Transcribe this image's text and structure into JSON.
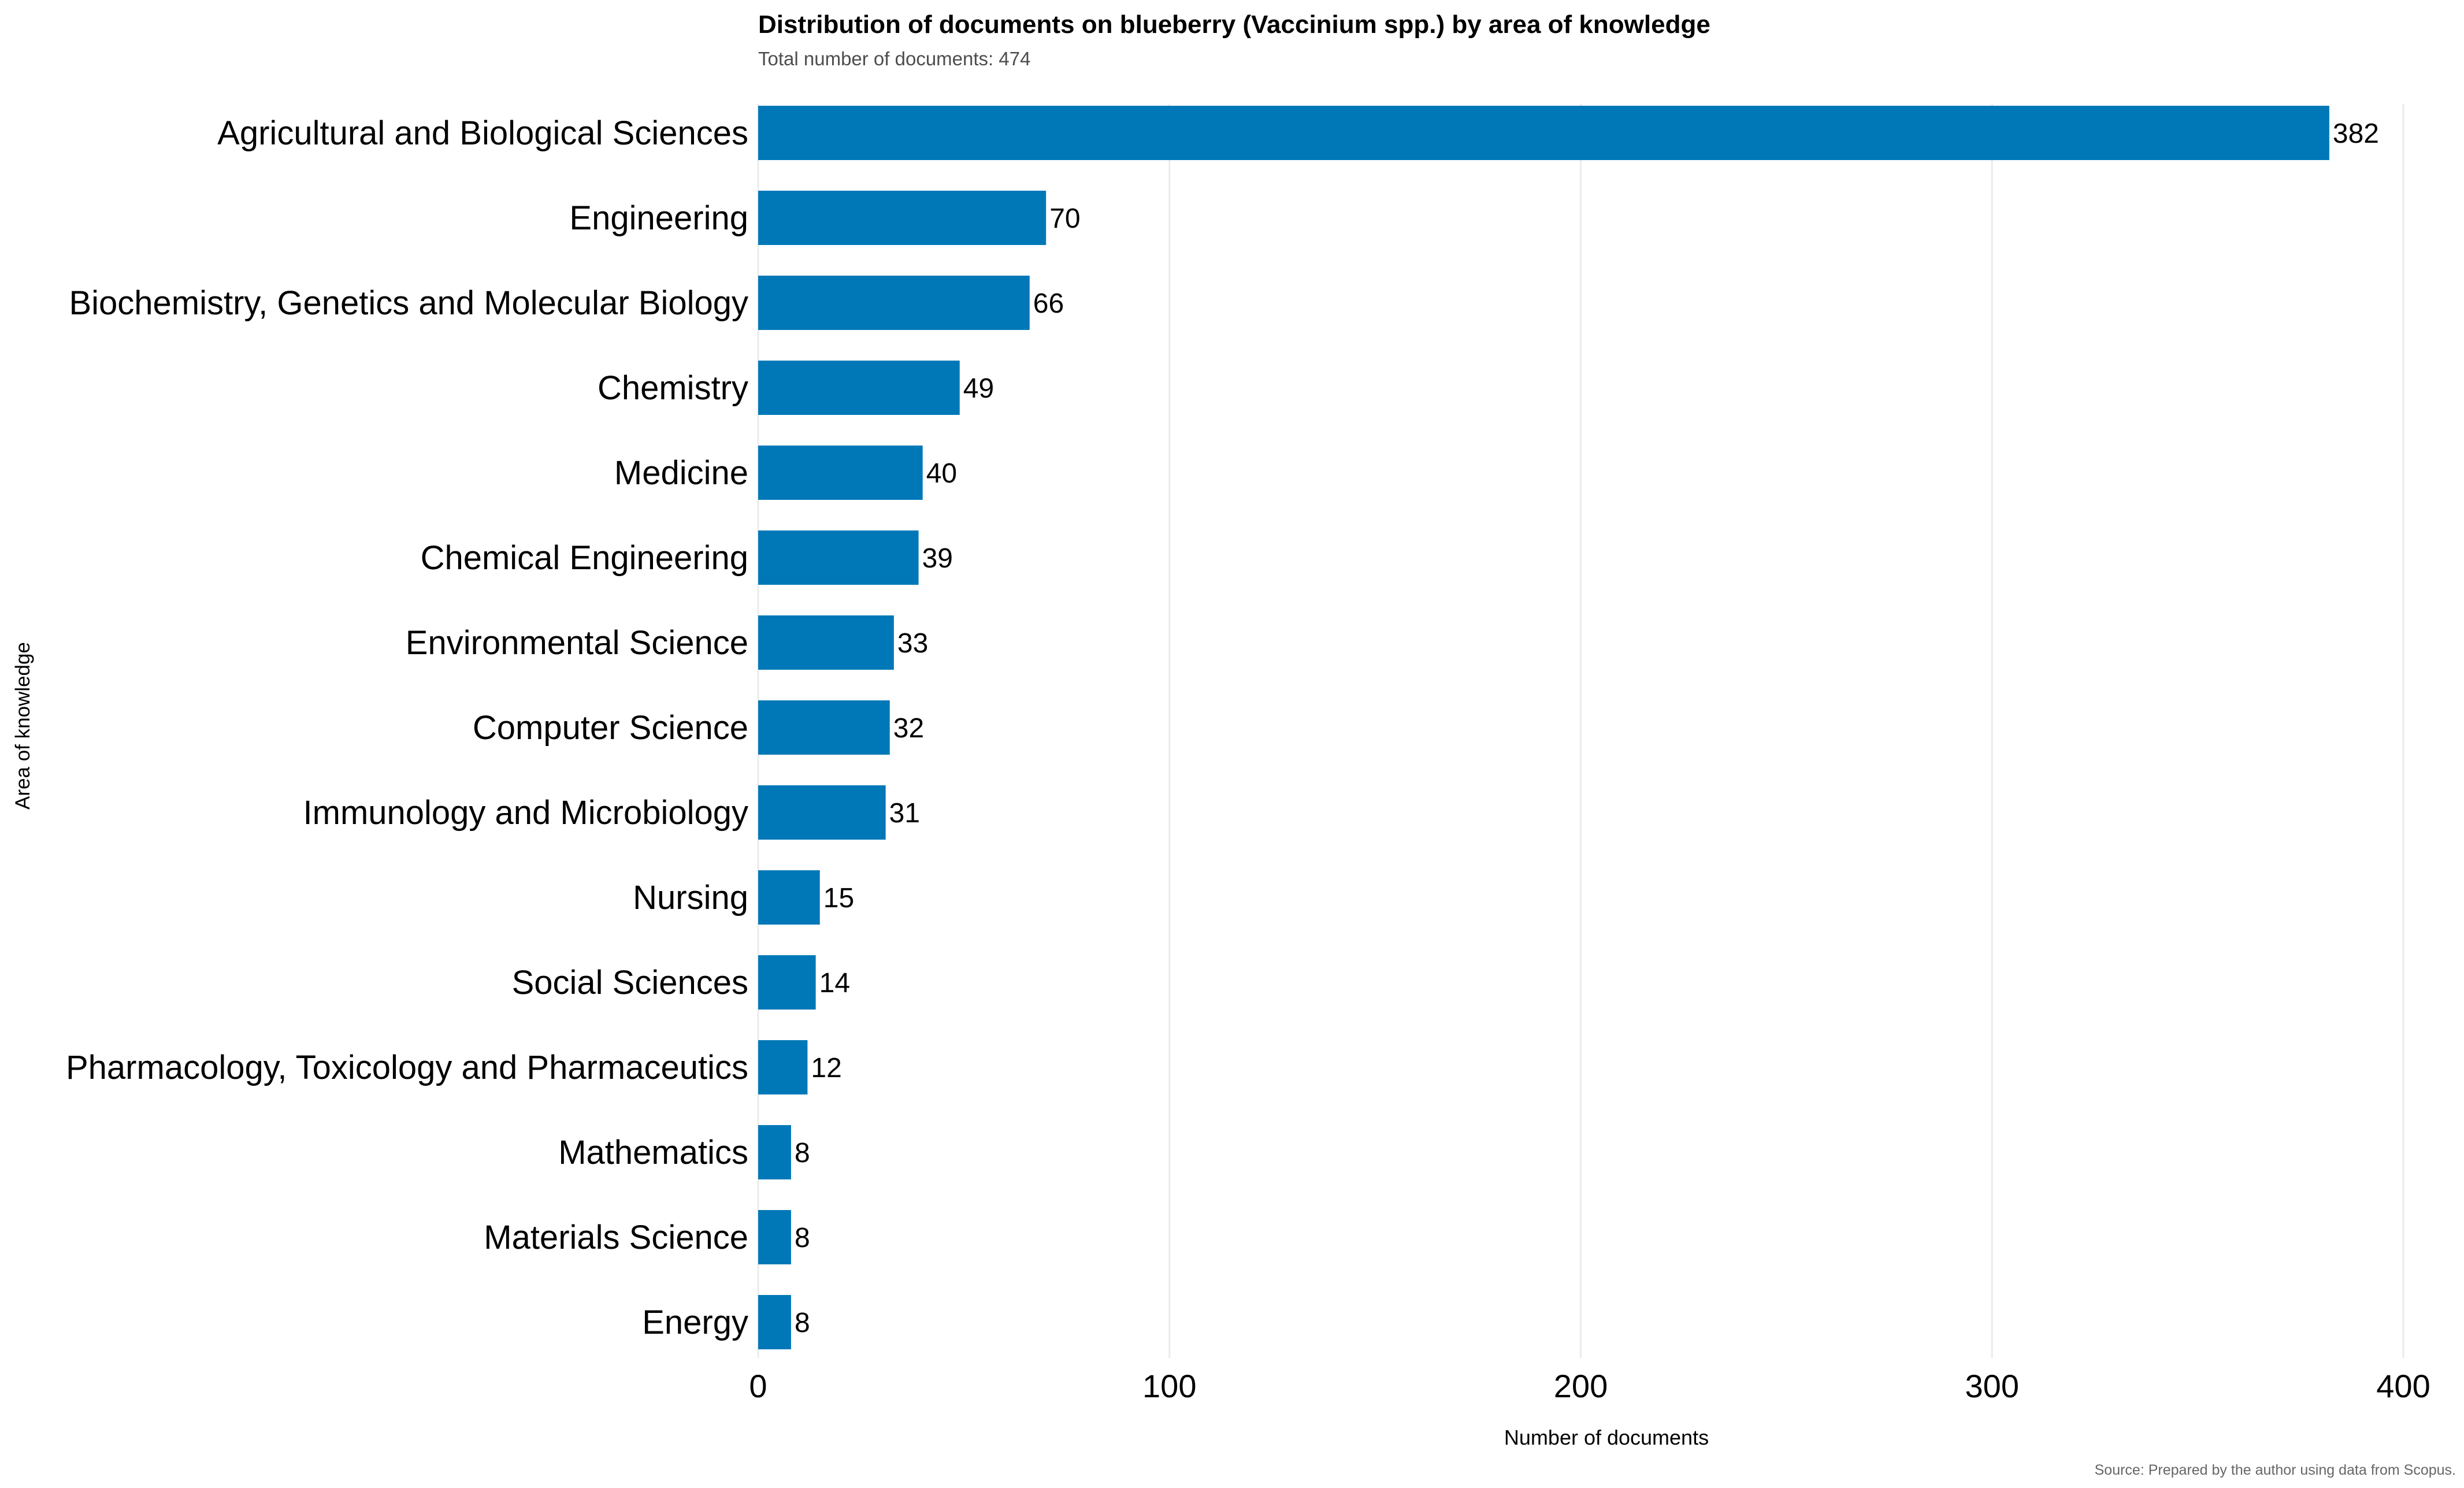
{
  "chart_data": {
    "type": "bar",
    "orientation": "horizontal",
    "title": "Distribution of documents on blueberry (Vaccinium spp.) by area of knowledge",
    "subtitle": "Total number of documents: 474",
    "xlabel": "Number of documents",
    "ylabel": "Area of knowledge",
    "caption": "Source: Prepared by the author using data from Scopus.",
    "xlim": [
      0,
      400
    ],
    "xticks": [
      0,
      100,
      200,
      300,
      400
    ],
    "grid": "vertical",
    "bar_color": "#0078B8",
    "categories": [
      "Agricultural and Biological Sciences",
      "Engineering",
      "Biochemistry, Genetics and Molecular Biology",
      "Chemistry",
      "Medicine",
      "Chemical Engineering",
      "Environmental Science",
      "Computer Science",
      "Immunology and Microbiology",
      "Nursing",
      "Social Sciences",
      "Pharmacology, Toxicology and Pharmaceutics",
      "Mathematics",
      "Materials Science",
      "Energy"
    ],
    "values": [
      382,
      70,
      66,
      49,
      40,
      39,
      33,
      32,
      31,
      15,
      14,
      12,
      8,
      8,
      8
    ]
  }
}
